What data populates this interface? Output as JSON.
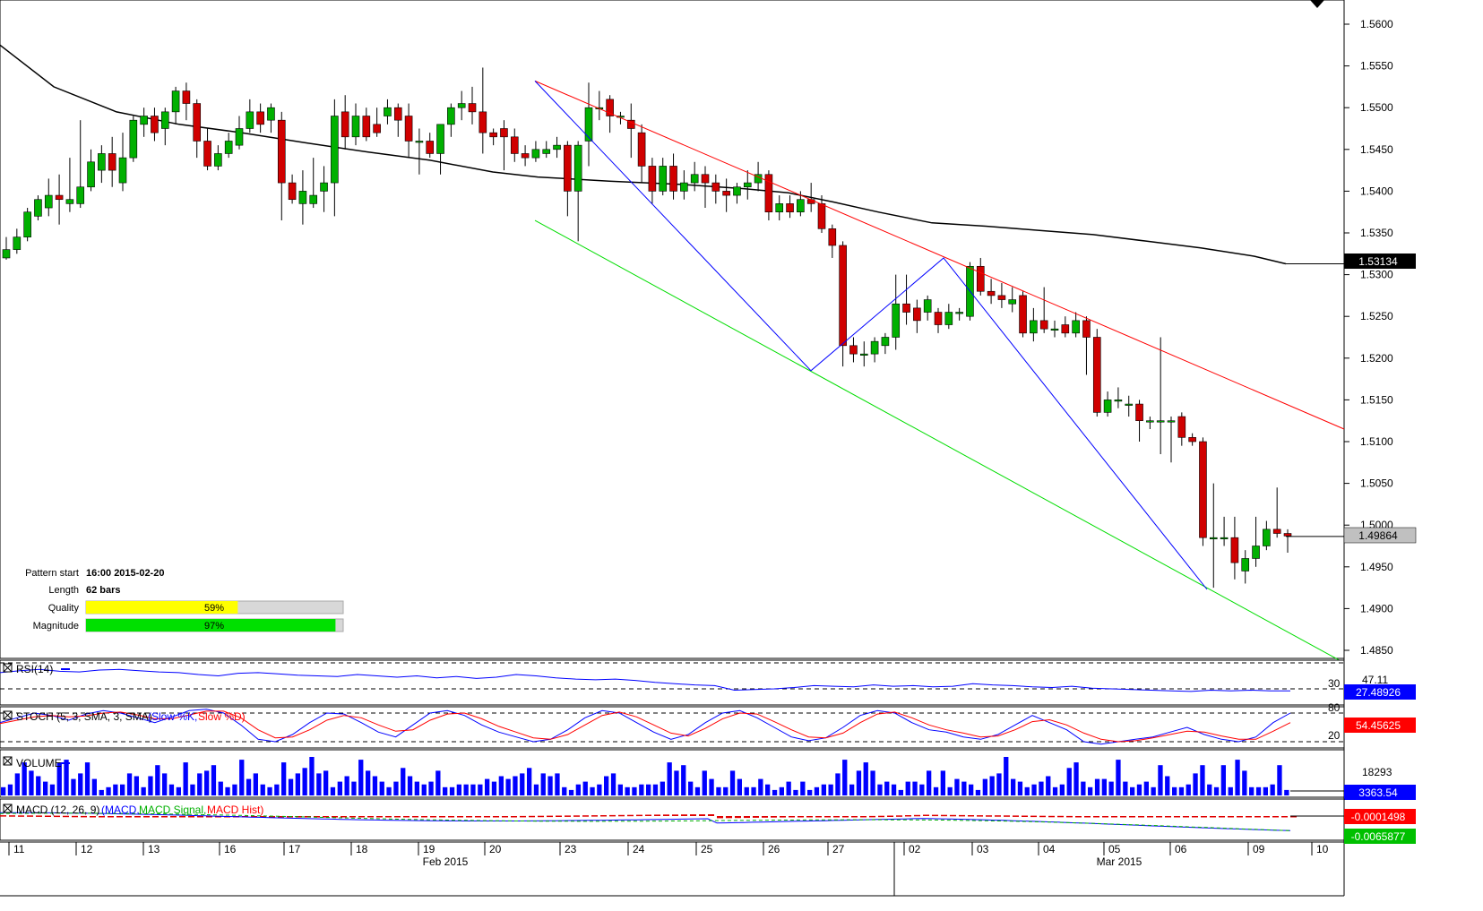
{
  "chart_data": {
    "type": "candlestick",
    "instrument_note": "",
    "y_axis": {
      "ticks": [
        "1.5600",
        "1.5550",
        "1.5500",
        "1.5450",
        "1.5400",
        "1.5350",
        "1.5300",
        "1.5250",
        "1.5200",
        "1.5150",
        "1.5100",
        "1.5050",
        "1.5000",
        "1.4950",
        "1.4900",
        "1.4850"
      ],
      "range": [
        1.4835,
        1.562
      ]
    },
    "x_axis": {
      "day_labels": [
        "11",
        "12",
        "13",
        "16",
        "17",
        "18",
        "19",
        "20",
        "23",
        "24",
        "25",
        "26",
        "27",
        "02",
        "03",
        "04",
        "05",
        "06",
        "09",
        "10"
      ],
      "month_labels": [
        "Feb 2015",
        "Mar 2015"
      ]
    },
    "price_badges": {
      "ma": "1.53134",
      "last": "1.49864"
    },
    "candles": [
      [
        1.532,
        1.533,
        1.5318,
        1.5345
      ],
      [
        1.533,
        1.5345,
        1.5325,
        1.5355
      ],
      [
        1.5345,
        1.5375,
        1.534,
        1.538
      ],
      [
        1.537,
        1.539,
        1.5365,
        1.5395
      ],
      [
        1.538,
        1.5395,
        1.537,
        1.5415
      ],
      [
        1.5395,
        1.539,
        1.536,
        1.542
      ],
      [
        1.5385,
        1.539,
        1.5375,
        1.544
      ],
      [
        1.5385,
        1.5405,
        1.538,
        1.5485
      ],
      [
        1.5405,
        1.5435,
        1.54,
        1.545
      ],
      [
        1.5425,
        1.5445,
        1.541,
        1.5455
      ],
      [
        1.5445,
        1.5425,
        1.5405,
        1.5465
      ],
      [
        1.541,
        1.544,
        1.54,
        1.547
      ],
      [
        1.544,
        1.5485,
        1.5435,
        1.549
      ],
      [
        1.548,
        1.549,
        1.5465,
        1.55
      ],
      [
        1.549,
        1.547,
        1.546,
        1.55
      ],
      [
        1.5475,
        1.5495,
        1.5455,
        1.55
      ],
      [
        1.5495,
        1.552,
        1.548,
        1.5525
      ],
      [
        1.552,
        1.5505,
        1.5485,
        1.553
      ],
      [
        1.5505,
        1.546,
        1.544,
        1.551
      ],
      [
        1.546,
        1.543,
        1.5425,
        1.5475
      ],
      [
        1.543,
        1.5445,
        1.5425,
        1.5455
      ],
      [
        1.5445,
        1.546,
        1.544,
        1.547
      ],
      [
        1.5455,
        1.5475,
        1.545,
        1.549
      ],
      [
        1.5475,
        1.5495,
        1.547,
        1.551
      ],
      [
        1.5495,
        1.548,
        1.547,
        1.5505
      ],
      [
        1.5485,
        1.55,
        1.547,
        1.5505
      ],
      [
        1.5485,
        1.541,
        1.5365,
        1.5495
      ],
      [
        1.541,
        1.539,
        1.5385,
        1.542
      ],
      [
        1.5385,
        1.54,
        1.536,
        1.5425
      ],
      [
        1.5385,
        1.5395,
        1.538,
        1.544
      ],
      [
        1.54,
        1.541,
        1.5375,
        1.543
      ],
      [
        1.541,
        1.549,
        1.537,
        1.551
      ],
      [
        1.5495,
        1.5465,
        1.545,
        1.5515
      ],
      [
        1.5465,
        1.549,
        1.5455,
        1.5505
      ],
      [
        1.549,
        1.5465,
        1.546,
        1.55
      ],
      [
        1.548,
        1.547,
        1.5465,
        1.55
      ],
      [
        1.549,
        1.55,
        1.548,
        1.551
      ],
      [
        1.55,
        1.5485,
        1.5465,
        1.5505
      ],
      [
        1.549,
        1.546,
        1.544,
        1.5505
      ],
      [
        1.546,
        1.546,
        1.542,
        1.5475
      ],
      [
        1.546,
        1.5445,
        1.544,
        1.547
      ],
      [
        1.5445,
        1.548,
        1.542,
        1.548
      ],
      [
        1.548,
        1.55,
        1.5465,
        1.5505
      ],
      [
        1.55,
        1.5505,
        1.5485,
        1.552
      ],
      [
        1.5505,
        1.5495,
        1.548,
        1.5525
      ],
      [
        1.5495,
        1.547,
        1.5445,
        1.5548
      ],
      [
        1.547,
        1.5465,
        1.5455,
        1.5475
      ],
      [
        1.5475,
        1.5465,
        1.5425,
        1.5485
      ],
      [
        1.5465,
        1.5445,
        1.5435,
        1.5475
      ],
      [
        1.5445,
        1.544,
        1.543,
        1.5455
      ],
      [
        1.544,
        1.545,
        1.5435,
        1.546
      ],
      [
        1.5445,
        1.545,
        1.544,
        1.546
      ],
      [
        1.545,
        1.5455,
        1.544,
        1.5465
      ],
      [
        1.5455,
        1.54,
        1.537,
        1.546
      ],
      [
        1.54,
        1.5455,
        1.534,
        1.546
      ],
      [
        1.546,
        1.55,
        1.543,
        1.553
      ],
      [
        1.55,
        1.55,
        1.5485,
        1.552
      ],
      [
        1.551,
        1.549,
        1.547,
        1.5515
      ],
      [
        1.549,
        1.549,
        1.548,
        1.5495
      ],
      [
        1.5485,
        1.5475,
        1.544,
        1.5505
      ],
      [
        1.547,
        1.543,
        1.541,
        1.548
      ],
      [
        1.543,
        1.54,
        1.5385,
        1.544
      ],
      [
        1.54,
        1.543,
        1.5395,
        1.544
      ],
      [
        1.543,
        1.54,
        1.539,
        1.5445
      ],
      [
        1.54,
        1.541,
        1.539,
        1.5425
      ],
      [
        1.541,
        1.542,
        1.54,
        1.5435
      ],
      [
        1.542,
        1.541,
        1.538,
        1.543
      ],
      [
        1.541,
        1.54,
        1.5385,
        1.542
      ],
      [
        1.54,
        1.5395,
        1.5375,
        1.5415
      ],
      [
        1.5395,
        1.5405,
        1.5385,
        1.541
      ],
      [
        1.5405,
        1.541,
        1.539,
        1.5425
      ],
      [
        1.541,
        1.542,
        1.54,
        1.5435
      ],
      [
        1.542,
        1.5375,
        1.5365,
        1.5425
      ],
      [
        1.5375,
        1.5385,
        1.5365,
        1.5395
      ],
      [
        1.5385,
        1.5375,
        1.5368,
        1.5395
      ],
      [
        1.5375,
        1.539,
        1.537,
        1.54
      ],
      [
        1.539,
        1.5385,
        1.5375,
        1.541
      ],
      [
        1.5385,
        1.5355,
        1.535,
        1.5395
      ],
      [
        1.5355,
        1.5335,
        1.532,
        1.536
      ],
      [
        1.5335,
        1.5215,
        1.519,
        1.534
      ],
      [
        1.5215,
        1.5205,
        1.5195,
        1.5225
      ],
      [
        1.5205,
        1.5205,
        1.519,
        1.522
      ],
      [
        1.5205,
        1.522,
        1.5195,
        1.5225
      ],
      [
        1.5215,
        1.5225,
        1.5205,
        1.523
      ],
      [
        1.5225,
        1.5265,
        1.521,
        1.53
      ],
      [
        1.5265,
        1.5255,
        1.524,
        1.53
      ],
      [
        1.526,
        1.5245,
        1.523,
        1.527
      ],
      [
        1.5255,
        1.527,
        1.5245,
        1.5275
      ],
      [
        1.5255,
        1.524,
        1.523,
        1.526
      ],
      [
        1.524,
        1.5255,
        1.5235,
        1.5265
      ],
      [
        1.5255,
        1.5255,
        1.5245,
        1.526
      ],
      [
        1.525,
        1.531,
        1.5245,
        1.5315
      ],
      [
        1.531,
        1.528,
        1.5275,
        1.532
      ],
      [
        1.528,
        1.5275,
        1.5265,
        1.5295
      ],
      [
        1.5275,
        1.527,
        1.526,
        1.529
      ],
      [
        1.5265,
        1.527,
        1.5255,
        1.5285
      ],
      [
        1.5275,
        1.523,
        1.5225,
        1.528
      ],
      [
        1.523,
        1.5245,
        1.522,
        1.526
      ],
      [
        1.5245,
        1.5235,
        1.523,
        1.5285
      ],
      [
        1.5235,
        1.5235,
        1.5225,
        1.5245
      ],
      [
        1.524,
        1.523,
        1.5225,
        1.525
      ],
      [
        1.523,
        1.5245,
        1.5225,
        1.5255
      ],
      [
        1.5245,
        1.5225,
        1.518,
        1.525
      ],
      [
        1.5225,
        1.5135,
        1.513,
        1.5235
      ],
      [
        1.5135,
        1.515,
        1.513,
        1.516
      ],
      [
        1.515,
        1.515,
        1.514,
        1.5165
      ],
      [
        1.5145,
        1.5145,
        1.513,
        1.5155
      ],
      [
        1.5145,
        1.5125,
        1.51,
        1.515
      ],
      [
        1.5125,
        1.5125,
        1.5115,
        1.513
      ],
      [
        1.5125,
        1.5125,
        1.5085,
        1.5225
      ],
      [
        1.5125,
        1.5125,
        1.5075,
        1.513
      ],
      [
        1.513,
        1.5105,
        1.5095,
        1.5135
      ],
      [
        1.5105,
        1.51,
        1.5095,
        1.511
      ],
      [
        1.51,
        1.4985,
        1.4975,
        1.5105
      ],
      [
        1.4985,
        1.4985,
        1.4925,
        1.505
      ],
      [
        1.4985,
        1.4985,
        1.4975,
        1.501
      ],
      [
        1.4985,
        1.4955,
        1.4935,
        1.501
      ],
      [
        1.4945,
        1.496,
        1.493,
        1.497
      ],
      [
        1.496,
        1.4975,
        1.495,
        1.501
      ],
      [
        1.4975,
        1.4995,
        1.497,
        1.5005
      ],
      [
        1.4995,
        1.499,
        1.4985,
        1.5045
      ],
      [
        1.499,
        1.4987,
        1.4967,
        1.4995
      ]
    ],
    "moving_average": [
      [
        0,
        1.5575
      ],
      [
        60,
        1.5525
      ],
      [
        130,
        1.5495
      ],
      [
        200,
        1.548
      ],
      [
        270,
        1.547
      ],
      [
        340,
        1.5458
      ],
      [
        410,
        1.5447
      ],
      [
        480,
        1.5437
      ],
      [
        550,
        1.5423
      ],
      [
        600,
        1.5417
      ],
      [
        680,
        1.5412
      ],
      [
        760,
        1.5408
      ],
      [
        830,
        1.5403
      ],
      [
        880,
        1.5398
      ],
      [
        930,
        1.5387
      ],
      [
        980,
        1.5375
      ],
      [
        1040,
        1.5362
      ],
      [
        1100,
        1.5358
      ],
      [
        1160,
        1.5353
      ],
      [
        1220,
        1.5348
      ],
      [
        1280,
        1.534
      ],
      [
        1340,
        1.5332
      ],
      [
        1400,
        1.5322
      ],
      [
        1435,
        1.5313
      ]
    ],
    "pattern": {
      "start_label": "Pattern start",
      "start_value": "16:00 2015-02-20",
      "length_label": "Length",
      "length_value": "62 bars",
      "quality_label": "Quality",
      "quality_text": "59%",
      "quality_fraction": 0.59,
      "magnitude_label": "Magnitude",
      "magnitude_text": "97%",
      "magnitude_fraction": 0.97
    },
    "channel": {
      "upper_red": [
        [
          597,
          1.5532
        ],
        [
          1500,
          1.5115
        ]
      ],
      "lower_green": [
        [
          597,
          1.5365
        ],
        [
          1500,
          1.4835
        ]
      ],
      "zigzag_blue": [
        [
          597,
          1.5532
        ],
        [
          905,
          1.5185
        ],
        [
          1053,
          1.532
        ],
        [
          1347,
          1.4923
        ]
      ]
    },
    "indicators": {
      "rsi": {
        "label": "RSI(14)",
        "level_30": "30",
        "level_mid": "47.11",
        "badge": "27.48926",
        "values": [
          55,
          58,
          60,
          57,
          56,
          59,
          60,
          58,
          56,
          55,
          52,
          50,
          54,
          55,
          53,
          51,
          50,
          49,
          52,
          50,
          48,
          50,
          47,
          49,
          46,
          48,
          52,
          50,
          47,
          45,
          44,
          45,
          43,
          40,
          38,
          36,
          35,
          28,
          29,
          30,
          32,
          35,
          34,
          33,
          36,
          34,
          35,
          33,
          34,
          38,
          36,
          35,
          33,
          32,
          34,
          31,
          30,
          29,
          28,
          27,
          26,
          28,
          27,
          28,
          27,
          27
        ]
      },
      "stoch": {
        "label": "STOCH (5, 3, SMA, 3, SMA)",
        "k_label": "(Slow %K,",
        "d_label": "Slow %D)",
        "level_80": "80",
        "level_20": "20",
        "badge": "54.45625",
        "k": [
          60,
          70,
          80,
          75,
          65,
          78,
          85,
          80,
          70,
          60,
          72,
          85,
          88,
          80,
          55,
          25,
          20,
          35,
          60,
          80,
          78,
          60,
          40,
          30,
          55,
          80,
          85,
          75,
          55,
          40,
          30,
          20,
          25,
          45,
          70,
          85,
          80,
          60,
          40,
          25,
          35,
          60,
          80,
          85,
          70,
          50,
          30,
          22,
          28,
          50,
          75,
          85,
          80,
          60,
          45,
          40,
          30,
          25,
          35,
          55,
          75,
          60,
          45,
          20,
          15,
          20,
          25,
          30,
          40,
          50,
          35,
          25,
          20,
          30,
          60,
          80
        ],
        "d": [
          58,
          65,
          72,
          75,
          72,
          74,
          80,
          82,
          76,
          68,
          68,
          76,
          84,
          84,
          70,
          45,
          28,
          30,
          45,
          65,
          75,
          70,
          55,
          42,
          45,
          65,
          78,
          80,
          68,
          52,
          40,
          28,
          25,
          35,
          55,
          75,
          82,
          72,
          55,
          38,
          32,
          48,
          68,
          80,
          78,
          62,
          45,
          30,
          28,
          38,
          60,
          78,
          82,
          70,
          55,
          45,
          38,
          30,
          32,
          45,
          62,
          66,
          55,
          38,
          25,
          20,
          22,
          28,
          35,
          42,
          40,
          32,
          25,
          25,
          42,
          60
        ]
      },
      "volume": {
        "label": "VOLUME",
        "level": "18293",
        "badge": "3363.54",
        "values": [
          3,
          4,
          8,
          12,
          9,
          7,
          5,
          4,
          12,
          13,
          6,
          8,
          12,
          6,
          2,
          3,
          4,
          4,
          8,
          7,
          3,
          7,
          11,
          8,
          4,
          3,
          12,
          4,
          8,
          9,
          11,
          5,
          3,
          4,
          13,
          6,
          8,
          4,
          3,
          4,
          12,
          6,
          8,
          10,
          14,
          8,
          9,
          3,
          5,
          7,
          5,
          13,
          9,
          7,
          5,
          3,
          5,
          10,
          7,
          5,
          4,
          5,
          9,
          3,
          3,
          4,
          4,
          4,
          4,
          6,
          5,
          7,
          6,
          7,
          8,
          10,
          4,
          8,
          7,
          8,
          3,
          2,
          4,
          5,
          3,
          4,
          7,
          8,
          4,
          3,
          3,
          4,
          4,
          4,
          5,
          12,
          9,
          11,
          5,
          3,
          9,
          6,
          3,
          3,
          9,
          6,
          3,
          3,
          6,
          4,
          2,
          3,
          5,
          2,
          5,
          2,
          3,
          4,
          4,
          8,
          13,
          4,
          9,
          12,
          9,
          4,
          5,
          4,
          2,
          5,
          5,
          4,
          9,
          3,
          9,
          3,
          6,
          5,
          4,
          2,
          6,
          7,
          8,
          14,
          6,
          5,
          3,
          4,
          5,
          7,
          3,
          4,
          10,
          12,
          5,
          3,
          6,
          6,
          5,
          13,
          5,
          3,
          4,
          5,
          3,
          11,
          7,
          3,
          3,
          4,
          8,
          11,
          4,
          3,
          11,
          3,
          13,
          9,
          3,
          3,
          3,
          4,
          11,
          2
        ]
      },
      "macd": {
        "label": "MACD (12, 26, 9)",
        "main_label": "(MACD,",
        "signal_label": "MACD Signal,",
        "hist_label": "MACD Hist)",
        "badge_main": "-0.0001498",
        "badge_signal": "-0.0065877"
      }
    }
  }
}
